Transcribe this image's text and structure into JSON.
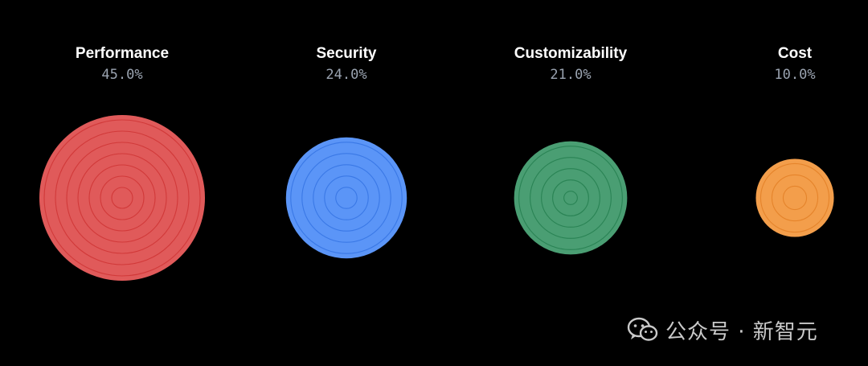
{
  "chart_data": {
    "type": "bubble",
    "title": "",
    "unit": "%",
    "categories": [
      "Performance",
      "Security",
      "Customizability",
      "Cost"
    ],
    "values": [
      45.0,
      24.0,
      21.0,
      10.0
    ],
    "value_labels": [
      "45.0%",
      "24.0%",
      "21.0%",
      "10.0%"
    ],
    "colors": [
      "#e05a5a",
      "#5b95f7",
      "#4a9e73",
      "#f39e4b"
    ],
    "ring_colors": [
      "#cc2f2f",
      "#2f6fe0",
      "#1f7a49",
      "#e07b20"
    ]
  },
  "watermark": {
    "icon": "wechat-icon",
    "text": "公众号 · 新智元"
  }
}
